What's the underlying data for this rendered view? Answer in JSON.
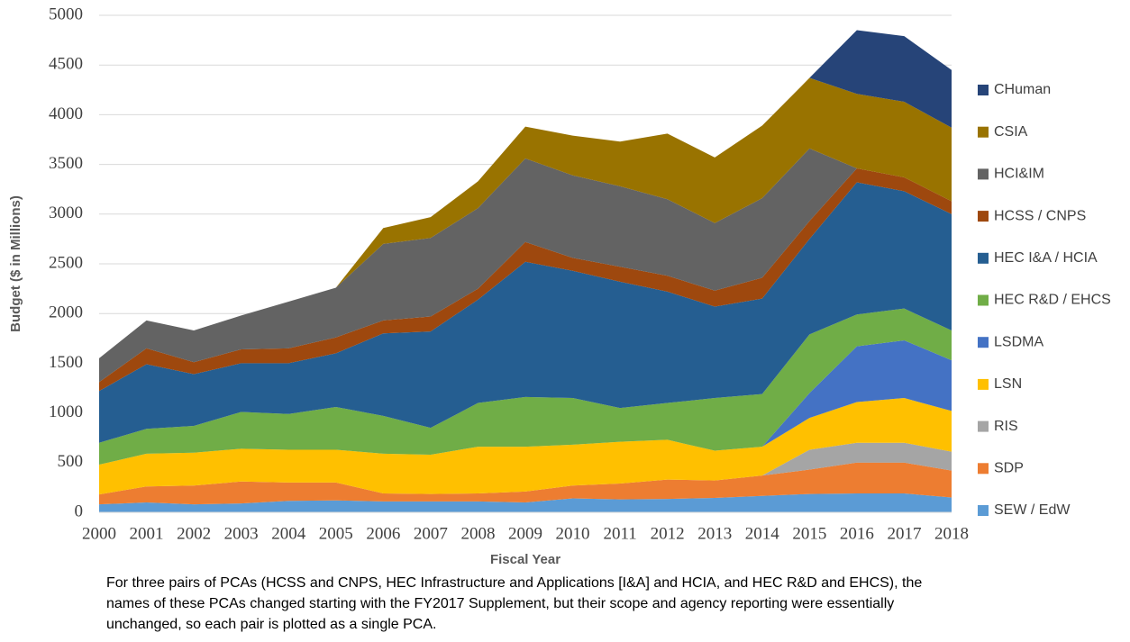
{
  "chart_data": {
    "type": "stacked_area",
    "xlabel": "Fiscal Year",
    "ylabel": "Budget ($ in Millions)",
    "note": "For three pairs of PCAs (HCSS and CNPS, HEC Infrastructure and Applications [I&A] and HCIA, and HEC R&D and EHCS), the names of these PCAs changed starting with the FY2017 Supplement, but their scope and agency reporting were essentially unchanged, so each pair is plotted as a single PCA.",
    "categories": [
      "2000",
      "2001",
      "2002",
      "2003",
      "2004",
      "2005",
      "2006",
      "2007",
      "2008",
      "2009",
      "2010",
      "2011",
      "2012",
      "2013",
      "2014",
      "2015",
      "2016",
      "2017",
      "2018"
    ],
    "ylim": [
      0,
      5000
    ],
    "yticks": [
      0,
      500,
      1000,
      1500,
      2000,
      2500,
      3000,
      3500,
      4000,
      4500,
      5000
    ],
    "grid": true,
    "legend": "right",
    "series": [
      {
        "name": "SEW / EdW",
        "color": "#5b9bd5",
        "values": [
          80,
          100,
          80,
          90,
          115,
          120,
          110,
          110,
          110,
          100,
          140,
          130,
          135,
          145,
          165,
          185,
          190,
          190,
          150
        ]
      },
      {
        "name": "SDP",
        "color": "#ed7d31",
        "values": [
          100,
          160,
          190,
          220,
          185,
          180,
          80,
          75,
          80,
          110,
          130,
          160,
          195,
          175,
          205,
          245,
          310,
          310,
          270
        ]
      },
      {
        "name": "RIS",
        "color": "#a5a5a5",
        "values": [
          0,
          0,
          0,
          0,
          0,
          0,
          0,
          0,
          0,
          0,
          0,
          0,
          0,
          0,
          0,
          200,
          200,
          200,
          190
        ]
      },
      {
        "name": "LSN",
        "color": "#ffc000",
        "values": [
          300,
          330,
          330,
          330,
          330,
          330,
          400,
          395,
          470,
          450,
          410,
          420,
          400,
          300,
          290,
          320,
          410,
          450,
          410
        ]
      },
      {
        "name": "LSDMA",
        "color": "#4472c4",
        "values": [
          0,
          0,
          0,
          0,
          0,
          0,
          0,
          0,
          0,
          0,
          0,
          0,
          0,
          0,
          0,
          250,
          560,
          580,
          510
        ]
      },
      {
        "name": "HEC R&D / EHCS",
        "color": "#70ad47",
        "values": [
          220,
          250,
          270,
          370,
          360,
          430,
          380,
          270,
          440,
          500,
          470,
          340,
          370,
          530,
          530,
          590,
          320,
          320,
          300
        ]
      },
      {
        "name": "HEC I&A / HCIA",
        "color": "#255e91",
        "values": [
          520,
          650,
          520,
          490,
          510,
          540,
          830,
          970,
          1040,
          1360,
          1280,
          1270,
          1120,
          920,
          960,
          960,
          1330,
          1180,
          1170
        ]
      },
      {
        "name": "HCSS / CNPS",
        "color": "#9e480e",
        "values": [
          90,
          160,
          120,
          140,
          150,
          160,
          130,
          150,
          110,
          200,
          130,
          150,
          160,
          160,
          210,
          180,
          140,
          140,
          130
        ]
      },
      {
        "name": "HCI&IM",
        "color": "#636363",
        "values": [
          240,
          280,
          320,
          340,
          470,
          500,
          770,
          790,
          810,
          840,
          830,
          810,
          770,
          680,
          800,
          730,
          0,
          0,
          0
        ]
      },
      {
        "name": "CSIA",
        "color": "#997300",
        "values": [
          0,
          0,
          0,
          0,
          0,
          0,
          160,
          210,
          270,
          320,
          400,
          450,
          660,
          660,
          730,
          710,
          750,
          760,
          740
        ]
      },
      {
        "name": "CHuman",
        "color": "#264478",
        "values": [
          0,
          0,
          0,
          0,
          0,
          0,
          0,
          0,
          0,
          0,
          0,
          0,
          0,
          0,
          0,
          0,
          640,
          660,
          580
        ]
      }
    ]
  }
}
